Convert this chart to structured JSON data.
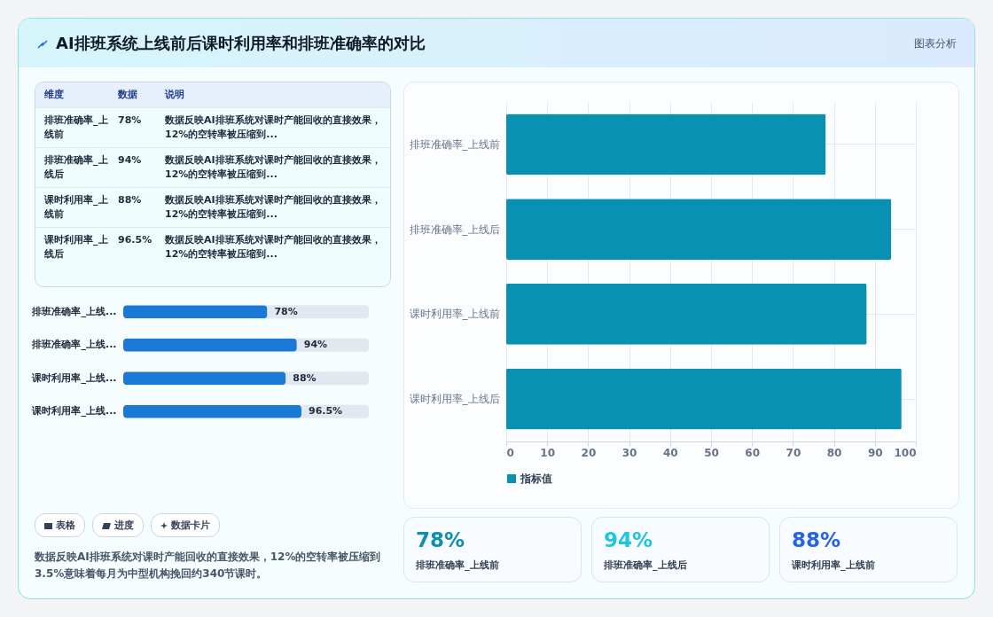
{
  "chart_data": [
    {
      "type": "bar",
      "orientation": "horizontal",
      "categories": [
        "排班准确率_上线前",
        "排班准确率_上线后",
        "课时利用率_上线前",
        "课时利用率_上线后"
      ],
      "series": [
        {
          "name": "指标值",
          "color": "#0891b2",
          "values": [
            78,
            94,
            88,
            96.5
          ]
        }
      ],
      "xlim": [
        0,
        100
      ],
      "xticks": [
        0,
        10,
        20,
        30,
        40,
        50,
        60,
        70,
        80,
        90,
        100
      ],
      "grid": true,
      "legend": "bottom"
    },
    {
      "type": "bar",
      "orientation": "horizontal",
      "categories": [
        "排班准确率_上线...",
        "排班准确率_上线...",
        "课时利用率_上线...",
        "课时利用率_上线..."
      ],
      "values": [
        78,
        94,
        88,
        96.5
      ],
      "color": "#1b78d4",
      "value_labels": [
        "78%",
        "94%",
        "88%",
        "96.5%"
      ],
      "xlim": [
        0,
        133
      ],
      "tick_labels": "y"
    },
    {
      "type": "other",
      "annotations": [
        "维度",
        "数据",
        "说明",
        "排班准确率_上线前",
        "78%",
        "数据反映AI排班系统对课时产能回收的直接效果，12%的空转率被压缩到...",
        "排班准确率_上线后",
        "94%",
        "数据反映AI排班系统对课时产能回收的直接效果，12%的空转率被压缩到...",
        "课时利用率_上线前",
        "88%",
        "数据反映AI排班系统对课时产能回收的直接效果，12%的空转率被压缩到...",
        "课时利用率_上线后",
        "96.5%",
        "数据反映AI排班系统对课时产能回收的直接效果，12%的空转率被压缩到..."
      ]
    },
    {
      "type": "other",
      "annotations": [
        "表格",
        "进度",
        "数据卡片",
        "数据反映AI排班系统对课时产能回收的直接效果，12%的空转率被压缩到3.5%意味着每月为中型机构挽回约340节课时。"
      ]
    },
    {
      "type": "other",
      "annotations": [
        "78%",
        "排班准确率_上线前",
        "94%",
        "排班准确率_上线后",
        "88%",
        "课时利用率_上线前"
      ]
    },
    {
      "type": "other",
      "title": "AI排班系统上线前后课时利用率和排班准确率的对比",
      "annotations": [
        "图表分析"
      ]
    }
  ]
}
